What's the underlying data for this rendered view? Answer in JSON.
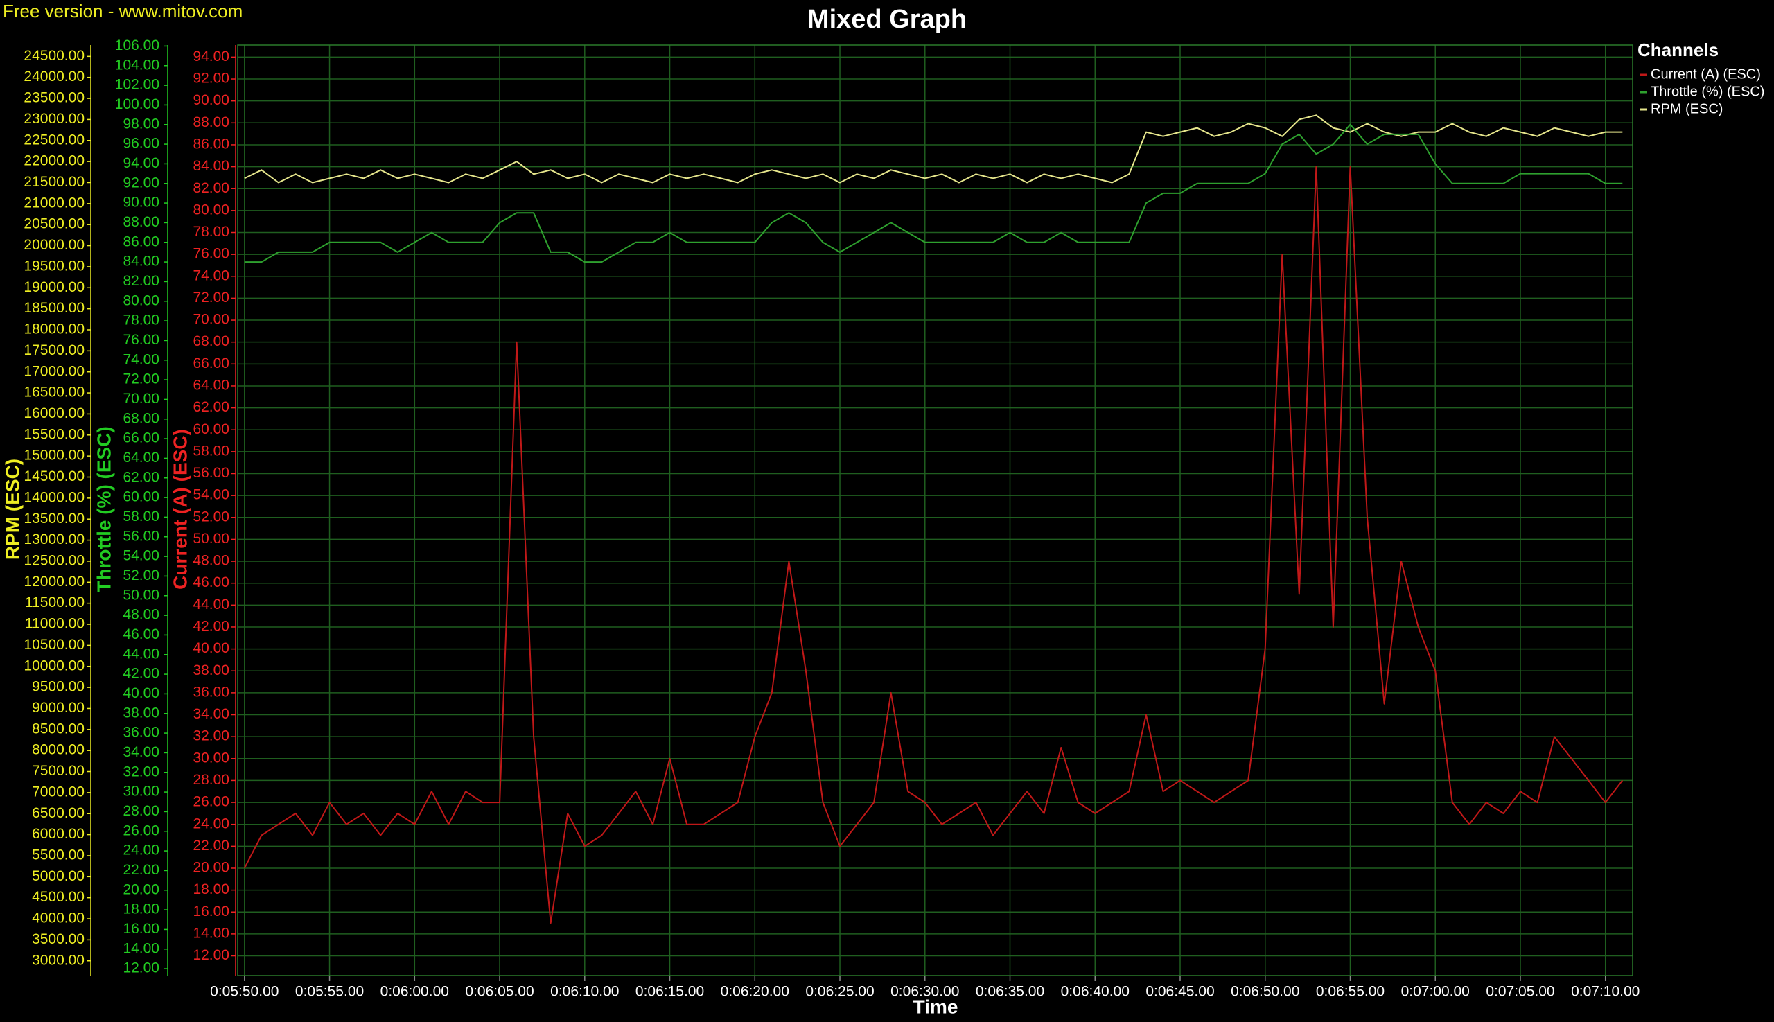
{
  "chart_data": {
    "type": "line",
    "watermark": "Free version - www.mitov.com",
    "title": "Mixed Graph",
    "xlabel": "Time",
    "legend_title": "Channels",
    "grid": true,
    "x": [
      350,
      351,
      352,
      353,
      354,
      355,
      356,
      357,
      358,
      359,
      360,
      361,
      362,
      363,
      364,
      365,
      366,
      367,
      368,
      369,
      370,
      371,
      372,
      373,
      374,
      375,
      376,
      377,
      378,
      379,
      380,
      381,
      382,
      383,
      384,
      385,
      386,
      387,
      388,
      389,
      390,
      391,
      392,
      393,
      394,
      395,
      396,
      397,
      398,
      399,
      400,
      401,
      402,
      403,
      404,
      405,
      406,
      407,
      408,
      409,
      410,
      411,
      412,
      413,
      414,
      415,
      416,
      417,
      418,
      419,
      420,
      421,
      422,
      423,
      424,
      425,
      426,
      427,
      428,
      429,
      430,
      431
    ],
    "xlim": [
      349.6,
      431.6
    ],
    "xticks": [
      {
        "value": 350,
        "label": "0:05:50.00"
      },
      {
        "value": 355,
        "label": "0:05:55.00"
      },
      {
        "value": 360,
        "label": "0:06:00.00"
      },
      {
        "value": 365,
        "label": "0:06:05.00"
      },
      {
        "value": 370,
        "label": "0:06:10.00"
      },
      {
        "value": 375,
        "label": "0:06:15.00"
      },
      {
        "value": 380,
        "label": "0:06:20.00"
      },
      {
        "value": 385,
        "label": "0:06:25.00"
      },
      {
        "value": 390,
        "label": "0:06:30.00"
      },
      {
        "value": 395,
        "label": "0:06:35.00"
      },
      {
        "value": 400,
        "label": "0:06:40.00"
      },
      {
        "value": 405,
        "label": "0:06:45.00"
      },
      {
        "value": 410,
        "label": "0:06:50.00"
      },
      {
        "value": 415,
        "label": "0:06:55.00"
      },
      {
        "value": 420,
        "label": "0:07:00.00"
      },
      {
        "value": 425,
        "label": "0:07:05.00"
      },
      {
        "value": 430,
        "label": "0:07:10.00"
      }
    ],
    "ylabel": "Current (A) (ESC)",
    "y_color": "#ee2222",
    "ylim": [
      10.2,
      95.1
    ],
    "yticks": [
      {
        "value": 12,
        "label": "12.00"
      },
      {
        "value": 14,
        "label": "14.00"
      },
      {
        "value": 16,
        "label": "16.00"
      },
      {
        "value": 18,
        "label": "18.00"
      },
      {
        "value": 20,
        "label": "20.00"
      },
      {
        "value": 22,
        "label": "22.00"
      },
      {
        "value": 24,
        "label": "24.00"
      },
      {
        "value": 26,
        "label": "26.00"
      },
      {
        "value": 28,
        "label": "28.00"
      },
      {
        "value": 30,
        "label": "30.00"
      },
      {
        "value": 32,
        "label": "32.00"
      },
      {
        "value": 34,
        "label": "34.00"
      },
      {
        "value": 36,
        "label": "36.00"
      },
      {
        "value": 38,
        "label": "38.00"
      },
      {
        "value": 40,
        "label": "40.00"
      },
      {
        "value": 42,
        "label": "42.00"
      },
      {
        "value": 44,
        "label": "44.00"
      },
      {
        "value": 46,
        "label": "46.00"
      },
      {
        "value": 48,
        "label": "48.00"
      },
      {
        "value": 50,
        "label": "50.00"
      },
      {
        "value": 52,
        "label": "52.00"
      },
      {
        "value": 54,
        "label": "54.00"
      },
      {
        "value": 56,
        "label": "56.00"
      },
      {
        "value": 58,
        "label": "58.00"
      },
      {
        "value": 60,
        "label": "60.00"
      },
      {
        "value": 62,
        "label": "62.00"
      },
      {
        "value": 64,
        "label": "64.00"
      },
      {
        "value": 66,
        "label": "66.00"
      },
      {
        "value": 68,
        "label": "68.00"
      },
      {
        "value": 70,
        "label": "70.00"
      },
      {
        "value": 72,
        "label": "72.00"
      },
      {
        "value": 74,
        "label": "74.00"
      },
      {
        "value": 76,
        "label": "76.00"
      },
      {
        "value": 78,
        "label": "78.00"
      },
      {
        "value": 80,
        "label": "80.00"
      },
      {
        "value": 82,
        "label": "82.00"
      },
      {
        "value": 84,
        "label": "84.00"
      },
      {
        "value": 86,
        "label": "86.00"
      },
      {
        "value": 88,
        "label": "88.00"
      },
      {
        "value": 90,
        "label": "90.00"
      },
      {
        "value": 92,
        "label": "92.00"
      },
      {
        "value": 94,
        "label": "94.00"
      }
    ],
    "y2label": "Throttle (%) (ESC)",
    "y2_color": "#22cc22",
    "y2lim": [
      11.3,
      106.1
    ],
    "y2ticks": [
      {
        "value": 12,
        "label": "12.00"
      },
      {
        "value": 14,
        "label": "14.00"
      },
      {
        "value": 16,
        "label": "16.00"
      },
      {
        "value": 18,
        "label": "18.00"
      },
      {
        "value": 20,
        "label": "20.00"
      },
      {
        "value": 22,
        "label": "22.00"
      },
      {
        "value": 24,
        "label": "24.00"
      },
      {
        "value": 26,
        "label": "26.00"
      },
      {
        "value": 28,
        "label": "28.00"
      },
      {
        "value": 30,
        "label": "30.00"
      },
      {
        "value": 32,
        "label": "32.00"
      },
      {
        "value": 34,
        "label": "34.00"
      },
      {
        "value": 36,
        "label": "36.00"
      },
      {
        "value": 38,
        "label": "38.00"
      },
      {
        "value": 40,
        "label": "40.00"
      },
      {
        "value": 42,
        "label": "42.00"
      },
      {
        "value": 44,
        "label": "44.00"
      },
      {
        "value": 46,
        "label": "46.00"
      },
      {
        "value": 48,
        "label": "48.00"
      },
      {
        "value": 50,
        "label": "50.00"
      },
      {
        "value": 52,
        "label": "52.00"
      },
      {
        "value": 54,
        "label": "54.00"
      },
      {
        "value": 56,
        "label": "56.00"
      },
      {
        "value": 58,
        "label": "58.00"
      },
      {
        "value": 60,
        "label": "60.00"
      },
      {
        "value": 62,
        "label": "62.00"
      },
      {
        "value": 64,
        "label": "64.00"
      },
      {
        "value": 66,
        "label": "66.00"
      },
      {
        "value": 68,
        "label": "68.00"
      },
      {
        "value": 70,
        "label": "70.00"
      },
      {
        "value": 72,
        "label": "72.00"
      },
      {
        "value": 74,
        "label": "74.00"
      },
      {
        "value": 76,
        "label": "76.00"
      },
      {
        "value": 78,
        "label": "78.00"
      },
      {
        "value": 80,
        "label": "80.00"
      },
      {
        "value": 82,
        "label": "82.00"
      },
      {
        "value": 84,
        "label": "84.00"
      },
      {
        "value": 86,
        "label": "86.00"
      },
      {
        "value": 88,
        "label": "88.00"
      },
      {
        "value": 90,
        "label": "90.00"
      },
      {
        "value": 92,
        "label": "92.00"
      },
      {
        "value": 94,
        "label": "94.00"
      },
      {
        "value": 96,
        "label": "96.00"
      },
      {
        "value": 98,
        "label": "98.00"
      },
      {
        "value": 100,
        "label": "100.00"
      },
      {
        "value": 102,
        "label": "102.00"
      },
      {
        "value": 104,
        "label": "104.00"
      },
      {
        "value": 106,
        "label": "106.00"
      }
    ],
    "y3label": "RPM (ESC)",
    "y3_color": "#eeee22",
    "y3lim": [
      2650,
      24769
    ],
    "y3ticks": [
      {
        "value": 3000,
        "label": "3000.00"
      },
      {
        "value": 3500,
        "label": "3500.00"
      },
      {
        "value": 4000,
        "label": "4000.00"
      },
      {
        "value": 4500,
        "label": "4500.00"
      },
      {
        "value": 5000,
        "label": "5000.00"
      },
      {
        "value": 5500,
        "label": "5500.00"
      },
      {
        "value": 6000,
        "label": "6000.00"
      },
      {
        "value": 6500,
        "label": "6500.00"
      },
      {
        "value": 7000,
        "label": "7000.00"
      },
      {
        "value": 7500,
        "label": "7500.00"
      },
      {
        "value": 8000,
        "label": "8000.00"
      },
      {
        "value": 8500,
        "label": "8500.00"
      },
      {
        "value": 9000,
        "label": "9000.00"
      },
      {
        "value": 9500,
        "label": "9500.00"
      },
      {
        "value": 10000,
        "label": "10000.00"
      },
      {
        "value": 10500,
        "label": "10500.00"
      },
      {
        "value": 11000,
        "label": "11000.00"
      },
      {
        "value": 11500,
        "label": "11500.00"
      },
      {
        "value": 12000,
        "label": "12000.00"
      },
      {
        "value": 12500,
        "label": "12500.00"
      },
      {
        "value": 13000,
        "label": "13000.00"
      },
      {
        "value": 13500,
        "label": "13500.00"
      },
      {
        "value": 14000,
        "label": "14000.00"
      },
      {
        "value": 14500,
        "label": "14500.00"
      },
      {
        "value": 15000,
        "label": "15000.00"
      },
      {
        "value": 15500,
        "label": "15500.00"
      },
      {
        "value": 16000,
        "label": "16000.00"
      },
      {
        "value": 16500,
        "label": "16500.00"
      },
      {
        "value": 17000,
        "label": "17000.00"
      },
      {
        "value": 17500,
        "label": "17500.00"
      },
      {
        "value": 18000,
        "label": "18000.00"
      },
      {
        "value": 18500,
        "label": "18500.00"
      },
      {
        "value": 19000,
        "label": "19000.00"
      },
      {
        "value": 19500,
        "label": "19500.00"
      },
      {
        "value": 20000,
        "label": "20000.00"
      },
      {
        "value": 20500,
        "label": "20500.00"
      },
      {
        "value": 21000,
        "label": "21000.00"
      },
      {
        "value": 21500,
        "label": "21500.00"
      },
      {
        "value": 22000,
        "label": "22000.00"
      },
      {
        "value": 22500,
        "label": "22500.00"
      },
      {
        "value": 23000,
        "label": "23000.00"
      },
      {
        "value": 23500,
        "label": "23500.00"
      },
      {
        "value": 24000,
        "label": "24000.00"
      },
      {
        "value": 24500,
        "label": "24500.00"
      }
    ],
    "series": [
      {
        "name": "Current (A) (ESC)",
        "color": "#c01818",
        "axis": "y",
        "values": [
          20,
          23,
          24,
          25,
          23,
          26,
          24,
          25,
          23,
          25,
          24,
          27,
          24,
          27,
          26,
          26,
          68,
          32,
          15,
          25,
          22,
          23,
          25,
          27,
          24,
          30,
          24,
          24,
          25,
          26,
          32,
          36,
          48,
          38,
          26,
          22,
          24,
          26,
          36,
          27,
          26,
          24,
          25,
          26,
          23,
          25,
          27,
          25,
          31,
          26,
          25,
          26,
          27,
          34,
          27,
          28,
          27,
          26,
          27,
          28,
          40,
          76,
          45,
          84,
          42,
          84,
          52,
          35,
          48,
          42,
          38,
          26,
          24,
          26,
          25,
          27,
          26,
          32,
          30,
          28,
          26,
          28
        ]
      },
      {
        "name": "Throttle (%) (ESC)",
        "color": "#2ea02e",
        "axis": "y2",
        "values": [
          84,
          84,
          85,
          85,
          85,
          86,
          86,
          86,
          86,
          85,
          86,
          87,
          86,
          86,
          86,
          88,
          89,
          89,
          85,
          85,
          84,
          84,
          85,
          86,
          86,
          87,
          86,
          86,
          86,
          86,
          86,
          88,
          89,
          88,
          86,
          85,
          86,
          87,
          88,
          87,
          86,
          86,
          86,
          86,
          86,
          87,
          86,
          86,
          87,
          86,
          86,
          86,
          86,
          90,
          91,
          91,
          92,
          92,
          92,
          92,
          93,
          96,
          97,
          95,
          96,
          98,
          96,
          97,
          97,
          97,
          94,
          92,
          92,
          92,
          92,
          93,
          93,
          93,
          93,
          93,
          92,
          92
        ]
      },
      {
        "name": "RPM (ESC)",
        "color": "#e6e68c",
        "axis": "y3",
        "values": [
          21600,
          21800,
          21500,
          21700,
          21500,
          21600,
          21700,
          21600,
          21800,
          21600,
          21700,
          21600,
          21500,
          21700,
          21600,
          21800,
          22000,
          21700,
          21800,
          21600,
          21700,
          21500,
          21700,
          21600,
          21500,
          21700,
          21600,
          21700,
          21600,
          21500,
          21700,
          21800,
          21700,
          21600,
          21700,
          21500,
          21700,
          21600,
          21800,
          21700,
          21600,
          21700,
          21500,
          21700,
          21600,
          21700,
          21500,
          21700,
          21600,
          21700,
          21600,
          21500,
          21700,
          22700,
          22600,
          22700,
          22800,
          22600,
          22700,
          22900,
          22800,
          22600,
          23000,
          23100,
          22800,
          22700,
          22900,
          22700,
          22600,
          22700,
          22700,
          22900,
          22700,
          22600,
          22800,
          22700,
          22600,
          22800,
          22700,
          22600,
          22700,
          22700
        ]
      }
    ]
  }
}
